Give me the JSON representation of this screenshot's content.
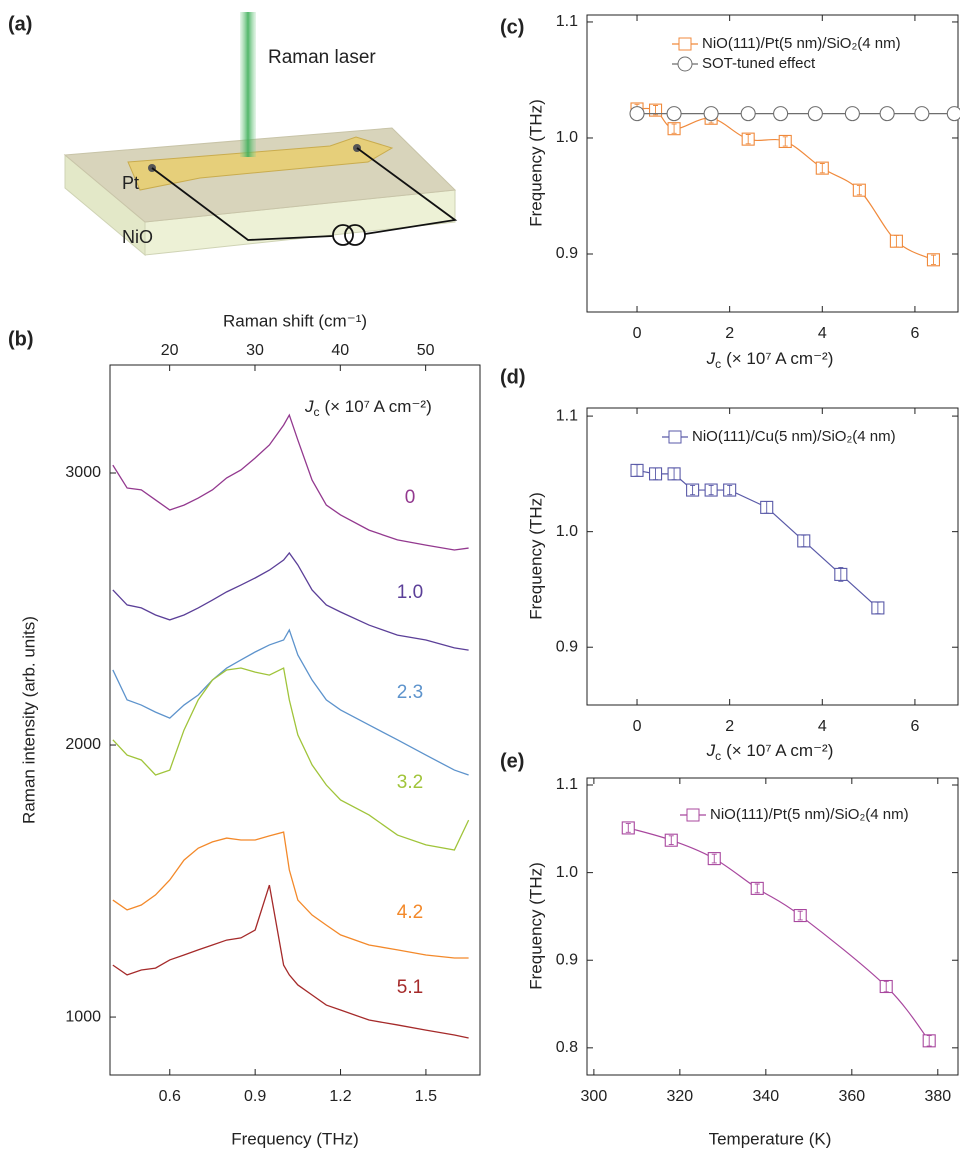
{
  "diagram": {
    "panel": "(a)",
    "laser_label": "Raman laser",
    "electrode_label": "Pt",
    "substrate_label": "NiO"
  },
  "chart_data": [
    {
      "panel": "(b)",
      "type": "line",
      "x_label": "Frequency (THz)",
      "x2_label": "Raman shift (cm⁻¹)",
      "y_label": "Raman intensity (arb. units)",
      "legend_title": {
        "symbol": "J",
        "subscript": "c",
        "unit": "(× 10⁷ A cm⁻²)"
      },
      "x": [
        0.4,
        0.45,
        0.5,
        0.55,
        0.6,
        0.65,
        0.7,
        0.75,
        0.8,
        0.85,
        0.9,
        0.95,
        1.0,
        1.02,
        1.05,
        1.1,
        1.15,
        1.2,
        1.3,
        1.4,
        1.5,
        1.6,
        1.65
      ],
      "xlim": [
        0.39,
        1.69
      ],
      "xticks": [
        0.6,
        0.9,
        1.2,
        1.5
      ],
      "x2lim": [
        13.01,
        56.37
      ],
      "x2ticks": [
        20,
        30,
        40,
        50
      ],
      "ylim": [
        787,
        3397
      ],
      "yticks": [
        1000,
        2000,
        3000
      ],
      "series": [
        {
          "name": "0",
          "color": "#93398f",
          "values": [
            3029,
            2945,
            2938,
            2901,
            2864,
            2882,
            2908,
            2938,
            2982,
            3011,
            3055,
            3103,
            3176,
            3213,
            3121,
            2974,
            2882,
            2846,
            2790,
            2754,
            2735,
            2717,
            2724
          ]
        },
        {
          "name": "1.0",
          "color": "#5b3f98",
          "values": [
            2570,
            2515,
            2504,
            2478,
            2460,
            2478,
            2504,
            2533,
            2563,
            2588,
            2614,
            2643,
            2680,
            2706,
            2662,
            2570,
            2515,
            2489,
            2441,
            2404,
            2386,
            2357,
            2349
          ]
        },
        {
          "name": "2.3",
          "color": "#5d93cc",
          "values": [
            2276,
            2166,
            2147,
            2121,
            2099,
            2147,
            2184,
            2239,
            2283,
            2313,
            2342,
            2368,
            2386,
            2423,
            2331,
            2239,
            2166,
            2129,
            2074,
            2019,
            1963,
            1908,
            1890
          ]
        },
        {
          "name": "3.2",
          "color": "#a0c43a",
          "values": [
            2019,
            1963,
            1945,
            1890,
            1908,
            2055,
            2166,
            2239,
            2276,
            2283,
            2268,
            2257,
            2283,
            2166,
            2037,
            1927,
            1853,
            1798,
            1743,
            1669,
            1633,
            1614,
            1724
          ]
        },
        {
          "name": "4.2",
          "color": "#f3892a",
          "values": [
            1430,
            1394,
            1412,
            1449,
            1504,
            1577,
            1621,
            1644,
            1658,
            1651,
            1651,
            1666,
            1680,
            1541,
            1430,
            1375,
            1338,
            1302,
            1265,
            1247,
            1228,
            1217,
            1217
          ]
        },
        {
          "name": "5.1",
          "color": "#a52a2a",
          "values": [
            1191,
            1155,
            1173,
            1180,
            1210,
            1228,
            1247,
            1265,
            1283,
            1291,
            1320,
            1485,
            1191,
            1155,
            1118,
            1081,
            1044,
            1026,
            989,
            971,
            952,
            934,
            923
          ]
        }
      ]
    },
    {
      "panel": "(c)",
      "type": "line",
      "x_label": {
        "symbol": "J",
        "subscript": "c",
        "unit": "(× 10⁷ A cm⁻²)"
      },
      "y_label": "Frequency (THz)",
      "xlim": [
        -1.08,
        6.93
      ],
      "xticks": [
        0,
        2,
        4,
        6
      ],
      "ylim": [
        0.85,
        1.106
      ],
      "yticks": [
        0.9,
        {
          "value": 1,
          "label": "1.0"
        },
        1.1
      ],
      "series": [
        {
          "name": "NiO(111)/Pt(5 nm)/SiO₂(4 nm)",
          "color": "#f08a3c",
          "marker": "square",
          "smooth": true,
          "x": [
            0,
            0.4,
            0.8,
            1.6,
            2.4,
            3.2,
            4.0,
            4.8,
            5.6,
            6.4
          ],
          "values": [
            1.025,
            1.024,
            1.008,
            1.017,
            0.999,
            0.997,
            0.974,
            0.955,
            0.911,
            0.895
          ],
          "errors": [
            0.004,
            0.004,
            0.004,
            0.004,
            0.004,
            0.004,
            0.004,
            0.004,
            0.005,
            0.004
          ]
        },
        {
          "name": "SOT-tuned effect",
          "color": "#6e6e6e",
          "marker": "circle",
          "x": [
            0,
            0.8,
            1.6,
            2.4,
            3.1,
            3.85,
            4.65,
            5.4,
            6.15,
            6.85
          ],
          "values": [
            1.021,
            1.021,
            1.021,
            1.021,
            1.021,
            1.021,
            1.021,
            1.021,
            1.021,
            1.021
          ]
        }
      ]
    },
    {
      "panel": "(d)",
      "type": "line",
      "x_label": {
        "symbol": "J",
        "subscript": "c",
        "unit": "(× 10⁷ A cm⁻²)"
      },
      "y_label": "Frequency (THz)",
      "xlim": [
        -1.08,
        6.93
      ],
      "xticks": [
        0,
        2,
        4,
        6
      ],
      "ylim": [
        0.85,
        1.107
      ],
      "yticks": [
        0.9,
        {
          "value": 1,
          "label": "1.0"
        },
        1.1
      ],
      "series": [
        {
          "name": "NiO(111)/Cu(5 nm)/SiO₂(4 nm)",
          "color": "#5a5aa8",
          "marker": "square",
          "x": [
            0,
            0.4,
            0.8,
            1.2,
            1.6,
            2.0,
            2.8,
            3.6,
            4.4,
            5.2
          ],
          "values": [
            1.053,
            1.05,
            1.05,
            1.036,
            1.036,
            1.036,
            1.021,
            0.992,
            0.963,
            0.934
          ],
          "errors": [
            0.005,
            0.005,
            0.005,
            0.004,
            0.004,
            0.004,
            0.005,
            0.005,
            0.006,
            0.005
          ]
        }
      ]
    },
    {
      "panel": "(e)",
      "type": "line",
      "x_label": "Temperature (K)",
      "y_label": "Frequency (THz)",
      "xlim": [
        298.4,
        384.7
      ],
      "xticks": [
        300,
        320,
        340,
        360,
        380
      ],
      "ylim": [
        0.769,
        1.108
      ],
      "yticks": [
        0.8,
        0.9,
        {
          "value": 1,
          "label": "1.0"
        },
        1.1
      ],
      "series": [
        {
          "name": "NiO(111)/Pt(5 nm)/SiO₂(4 nm)",
          "color": "#a8479e",
          "marker": "square",
          "smooth": true,
          "x": [
            308,
            318,
            328,
            338,
            348,
            368,
            378
          ],
          "values": [
            1.051,
            1.037,
            1.016,
            0.982,
            0.951,
            0.87,
            0.808
          ],
          "errors": [
            0.005,
            0.005,
            0.005,
            0.005,
            0.005,
            0.006,
            0.006
          ]
        }
      ]
    }
  ]
}
